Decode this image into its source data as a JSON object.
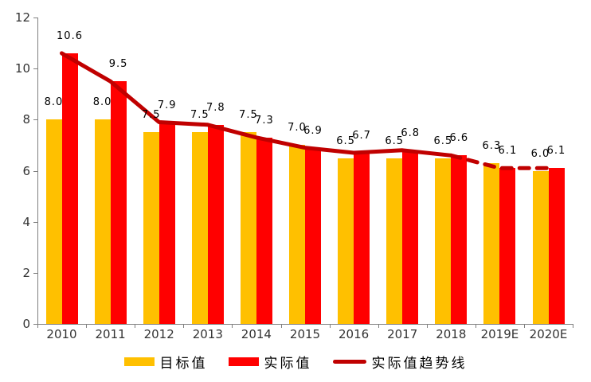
{
  "chart_data": {
    "type": "bar",
    "title": "",
    "categories": [
      "2010",
      "2011",
      "2012",
      "2013",
      "2014",
      "2015",
      "2016",
      "2017",
      "2018",
      "2019E",
      "2020E"
    ],
    "series": [
      {
        "name": "目标值",
        "type": "bar",
        "color": "#FFC000",
        "values": [
          8.0,
          8.0,
          7.5,
          7.5,
          7.5,
          7.0,
          6.5,
          6.5,
          6.5,
          6.3,
          6.0
        ]
      },
      {
        "name": "实际值",
        "type": "bar",
        "color": "#FF0000",
        "values": [
          10.6,
          9.5,
          7.9,
          7.8,
          7.3,
          6.9,
          6.7,
          6.8,
          6.6,
          6.1,
          6.1
        ]
      },
      {
        "name": "实际值趋势线",
        "type": "line",
        "color": "#C00000",
        "values": [
          10.6,
          9.5,
          7.9,
          7.8,
          7.3,
          6.9,
          6.7,
          6.8,
          6.6,
          6.1,
          6.1
        ],
        "dashed_from_index": 8
      }
    ],
    "ylim": [
      0,
      12
    ],
    "yticks": [
      0,
      2,
      4,
      6,
      8,
      10,
      12
    ],
    "grid": false,
    "legend_position": "bottom",
    "data_labels": true,
    "label_decimals": 1
  },
  "colors": {
    "axis": "#808080",
    "axis_tick_label": "#333333",
    "data_label": "#000000",
    "background": "#FFFFFF"
  }
}
